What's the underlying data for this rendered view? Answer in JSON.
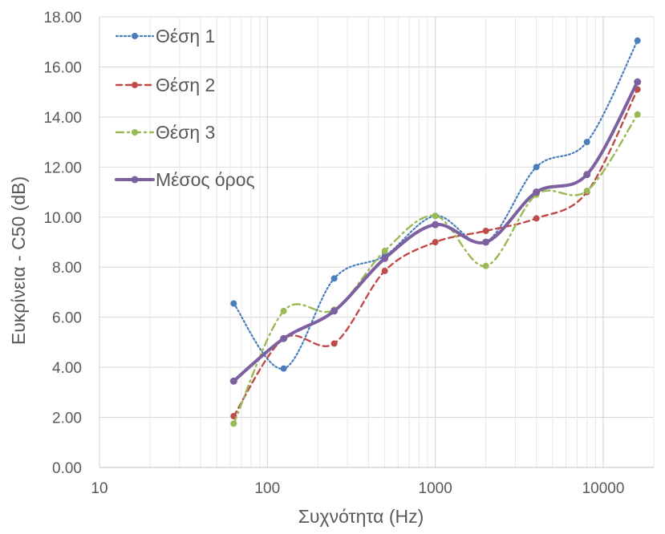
{
  "chart_data": {
    "type": "line",
    "xscale": "log",
    "x": [
      63,
      125,
      250,
      500,
      1000,
      2000,
      4000,
      8000,
      16000
    ],
    "xlim": [
      10,
      20000
    ],
    "ylim": [
      0,
      18
    ],
    "xticks": [
      10,
      100,
      1000,
      10000
    ],
    "xtick_labels": [
      "10",
      "100",
      "1000",
      "10000"
    ],
    "yticks": [
      0,
      2,
      4,
      6,
      8,
      10,
      12,
      14,
      16,
      18
    ],
    "ytick_labels": [
      "0.00",
      "2.00",
      "4.00",
      "6.00",
      "8.00",
      "10.00",
      "12.00",
      "14.00",
      "16.00",
      "18.00"
    ],
    "xlabel": "Συχνότητα (Hz)",
    "ylabel": "Ευκρίνεια - C50 (dB)",
    "grid": true,
    "legend": "top-left",
    "series": [
      {
        "name": "Θέση 1",
        "values": [
          6.55,
          3.95,
          7.55,
          8.45,
          10.05,
          9.0,
          12.0,
          13.0,
          17.05
        ],
        "color": "#4a7ebb",
        "style": "dotted"
      },
      {
        "name": "Θέση 2",
        "values": [
          2.05,
          5.15,
          4.95,
          7.85,
          9.0,
          9.45,
          9.95,
          11.0,
          15.1
        ],
        "color": "#be4b48",
        "style": "dashed"
      },
      {
        "name": "Θέση 3",
        "values": [
          1.75,
          6.25,
          6.3,
          8.65,
          10.05,
          8.05,
          10.9,
          11.05,
          14.1
        ],
        "color": "#98b954",
        "style": "dashdot"
      },
      {
        "name": "Μέσος όρος",
        "values": [
          3.45,
          5.15,
          6.25,
          8.35,
          9.7,
          9.0,
          11.0,
          11.7,
          15.4
        ],
        "color": "#7d60a0",
        "style": "solid"
      }
    ]
  }
}
